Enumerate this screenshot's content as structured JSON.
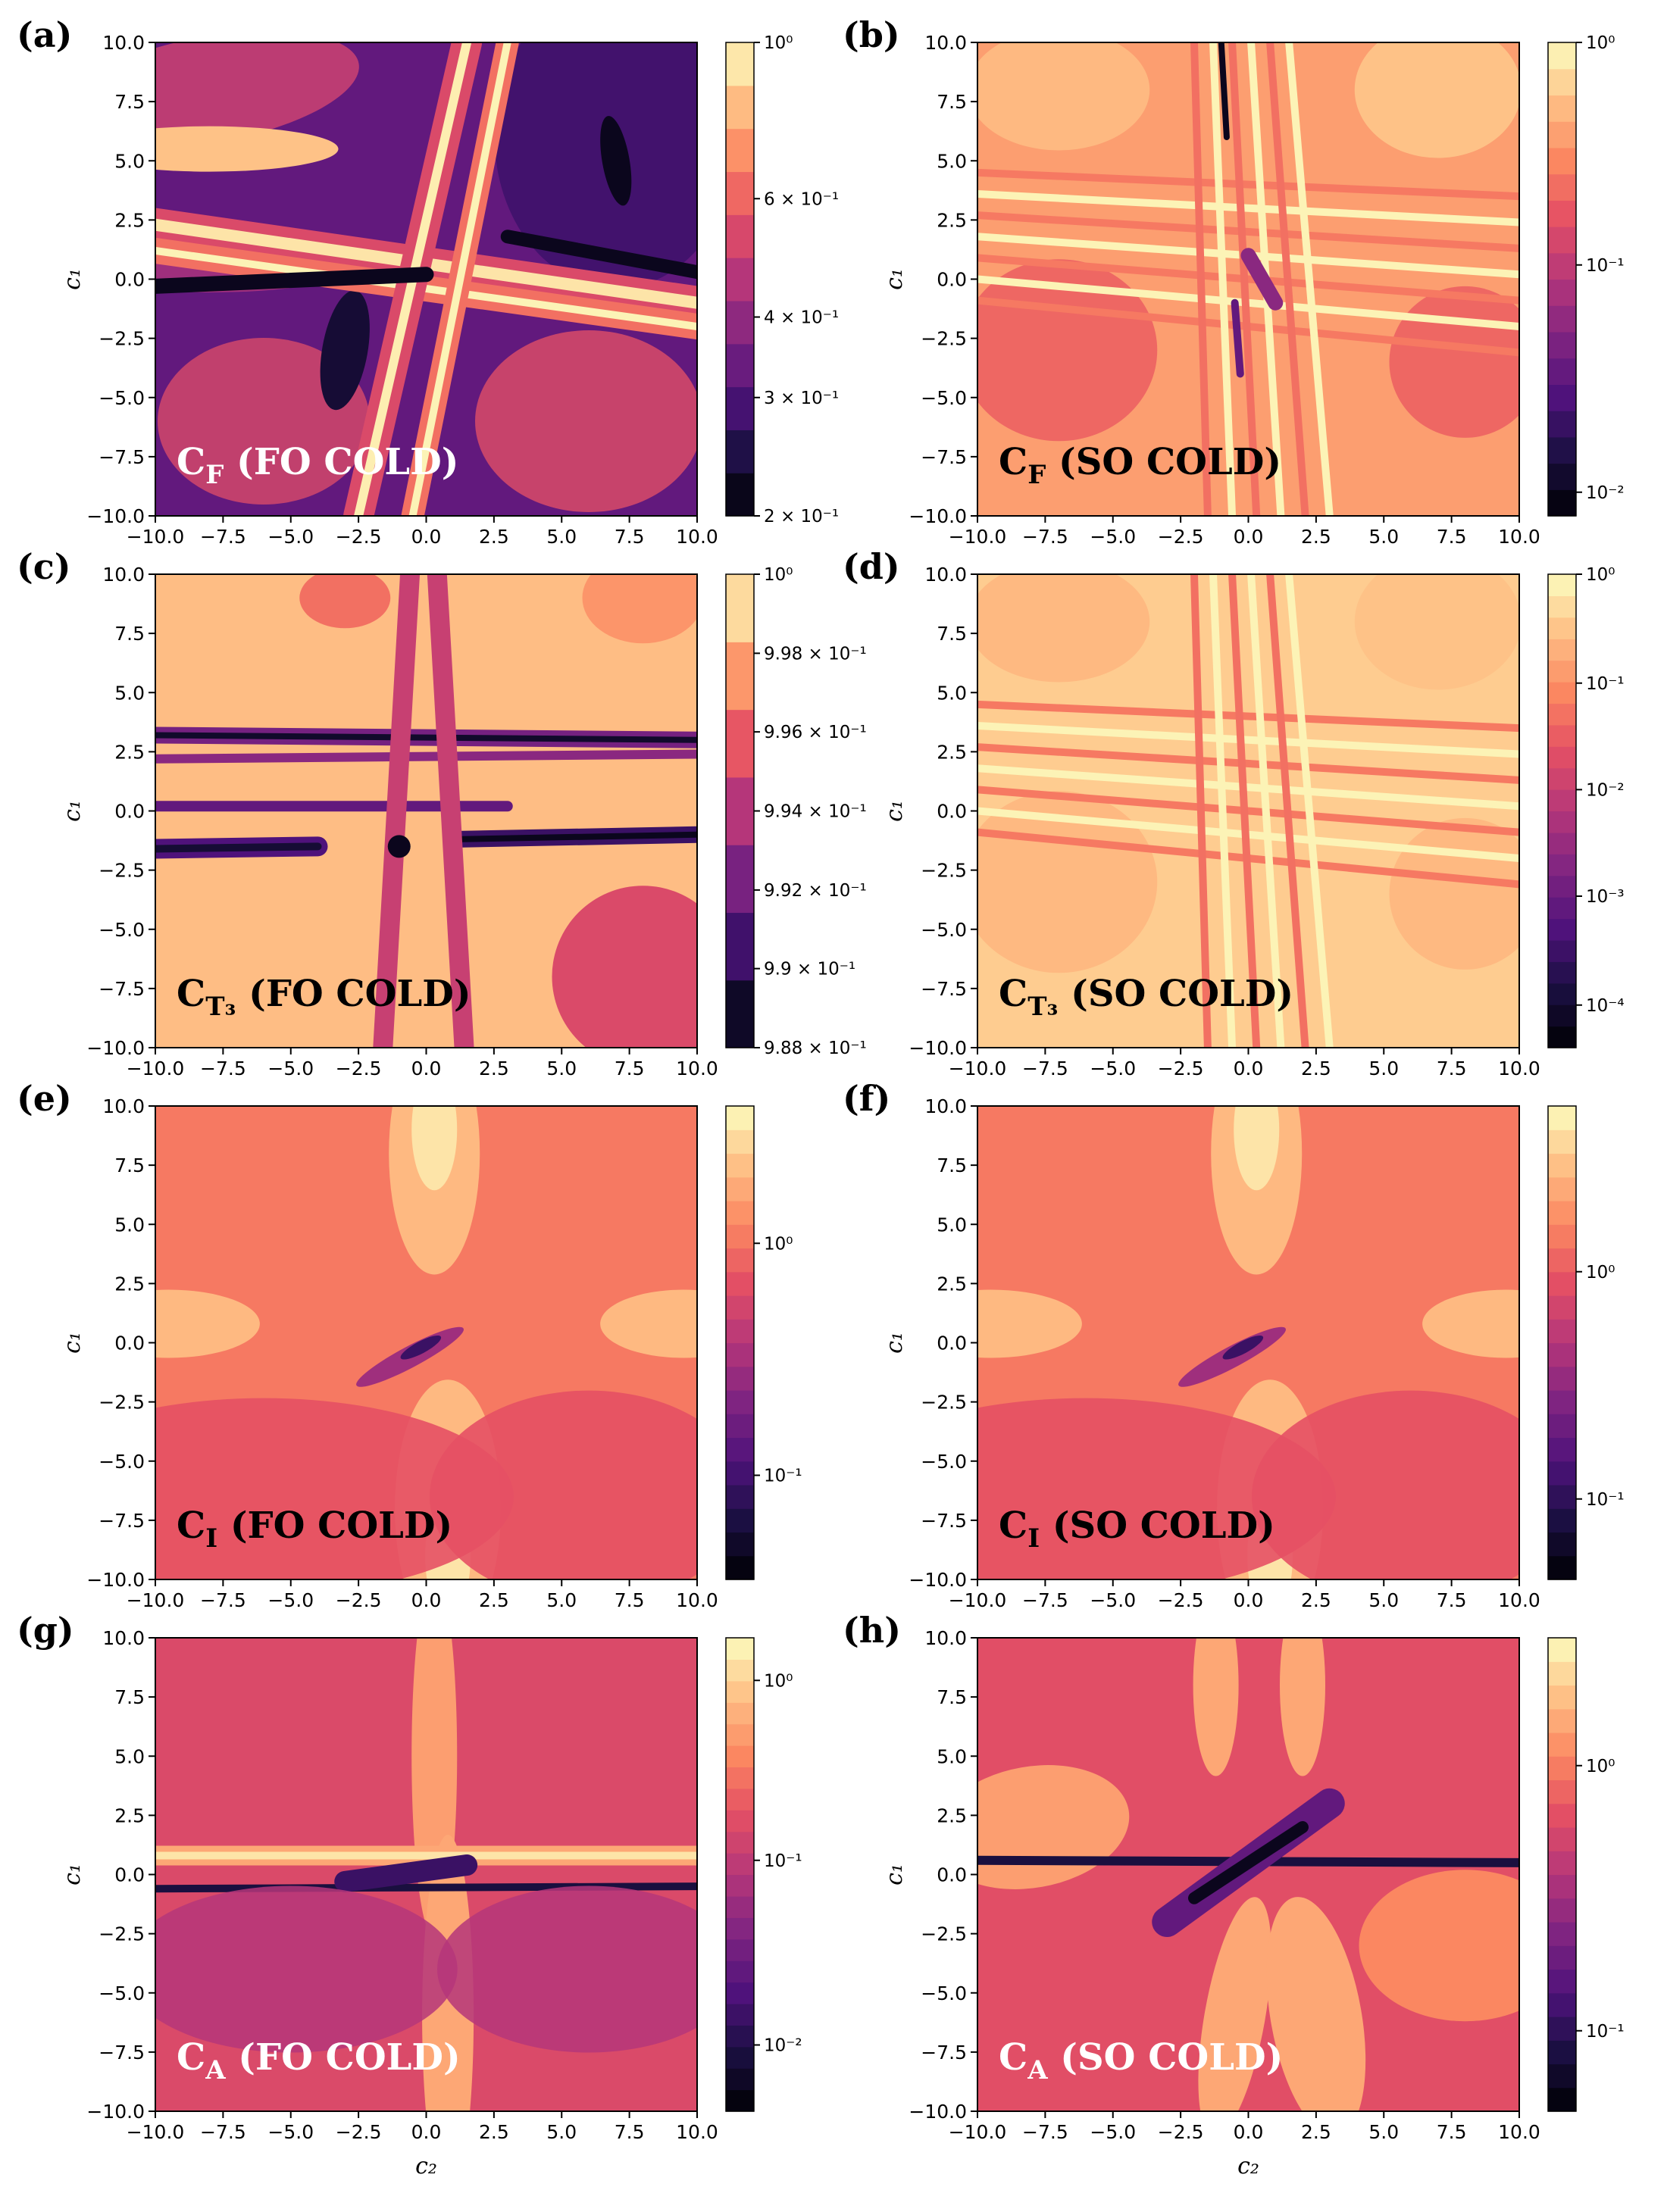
{
  "figure": {
    "x_axis_label": "c₂",
    "y_axis_label": "c₁",
    "colormap": "magma"
  },
  "chart_data": [
    {
      "panel": "(a)",
      "type": "heatmap",
      "overlay": {
        "main": "C",
        "sub": "F",
        "rest": " (FO COLD)",
        "color": "#ffffff"
      },
      "xlim": [
        -10,
        10
      ],
      "ylim": [
        -10,
        10
      ],
      "xticks": [
        "−10.0",
        "−7.5",
        "−5.0",
        "−2.5",
        "0.0",
        "2.5",
        "5.0",
        "7.5",
        "10.0"
      ],
      "yticks": [
        "−10.0",
        "−7.5",
        "−5.0",
        "−2.5",
        "0.0",
        "2.5",
        "5.0",
        "7.5",
        "10.0"
      ],
      "colorbar": {
        "scale": "log",
        "levels": 11,
        "ticks": [
          {
            "label": "2 × 10⁻¹",
            "pos": 0.0
          },
          {
            "label": "3 × 10⁻¹",
            "pos": 0.25
          },
          {
            "label": "4 × 10⁻¹",
            "pos": 0.42
          },
          {
            "label": "6 × 10⁻¹",
            "pos": 0.67
          },
          {
            "label": "10⁰",
            "pos": 1.0
          }
        ]
      },
      "pattern": {
        "kind": "lattice",
        "v": "bright"
      }
    },
    {
      "panel": "(b)",
      "type": "heatmap",
      "overlay": {
        "main": "C",
        "sub": "F",
        "rest": " (SO COLD)",
        "color": "#000000"
      },
      "xlim": [
        -10,
        10
      ],
      "ylim": [
        -10,
        10
      ],
      "xticks": [
        "−10.0",
        "−7.5",
        "−5.0",
        "−2.5",
        "0.0",
        "2.5",
        "5.0",
        "7.5",
        "10.0"
      ],
      "yticks": [
        "−10.0",
        "−7.5",
        "−5.0",
        "−2.5",
        "0.0",
        "2.5",
        "5.0",
        "7.5",
        "10.0"
      ],
      "colorbar": {
        "scale": "log",
        "levels": 18,
        "ticks": [
          {
            "label": "10⁻²",
            "pos": 0.05
          },
          {
            "label": "10⁻¹",
            "pos": 0.53
          },
          {
            "label": "10⁰",
            "pos": 1.0
          }
        ]
      },
      "pattern": {
        "kind": "light_cross",
        "v": "bright"
      }
    },
    {
      "panel": "(c)",
      "type": "heatmap",
      "overlay": {
        "main": "C",
        "sub": "T₃",
        "rest": " (FO COLD)",
        "color": "#000000"
      },
      "xlim": [
        -10,
        10
      ],
      "ylim": [
        -10,
        10
      ],
      "xticks": [
        "−10.0",
        "−7.5",
        "−5.0",
        "−2.5",
        "0.0",
        "2.5",
        "5.0",
        "7.5",
        "10.0"
      ],
      "yticks": [
        "−10.0",
        "−7.5",
        "−5.0",
        "−2.5",
        "0.0",
        "2.5",
        "5.0",
        "7.5",
        "10.0"
      ],
      "colorbar": {
        "scale": "log",
        "levels": 7,
        "ticks": [
          {
            "label": "9.88 × 10⁻¹",
            "pos": 0.0
          },
          {
            "label": "9.9 × 10⁻¹",
            "pos": 0.167
          },
          {
            "label": "9.92 × 10⁻¹",
            "pos": 0.333
          },
          {
            "label": "9.94 × 10⁻¹",
            "pos": 0.5
          },
          {
            "label": "9.96 × 10⁻¹",
            "pos": 0.667
          },
          {
            "label": "9.98 × 10⁻¹",
            "pos": 0.833
          },
          {
            "label": "10⁰",
            "pos": 1.0
          }
        ]
      },
      "pattern": {
        "kind": "lattice",
        "v": "dark"
      }
    },
    {
      "panel": "(d)",
      "type": "heatmap",
      "overlay": {
        "main": "C",
        "sub": "T₃",
        "rest": " (SO COLD)",
        "color": "#000000"
      },
      "xlim": [
        -10,
        10
      ],
      "ylim": [
        -10,
        10
      ],
      "xticks": [
        "−10.0",
        "−7.5",
        "−5.0",
        "−2.5",
        "0.0",
        "2.5",
        "5.0",
        "7.5",
        "10.0"
      ],
      "yticks": [
        "−10.0",
        "−7.5",
        "−5.0",
        "−2.5",
        "0.0",
        "2.5",
        "5.0",
        "7.5",
        "10.0"
      ],
      "colorbar": {
        "scale": "log",
        "levels": 22,
        "ticks": [
          {
            "label": "10⁻⁴",
            "pos": 0.09
          },
          {
            "label": "10⁻³",
            "pos": 0.32
          },
          {
            "label": "10⁻²",
            "pos": 0.545
          },
          {
            "label": "10⁻¹",
            "pos": 0.77
          },
          {
            "label": "10⁰",
            "pos": 1.0
          }
        ]
      },
      "pattern": {
        "kind": "light_cross",
        "v": "very_bright"
      }
    },
    {
      "panel": "(e)",
      "type": "heatmap",
      "overlay": {
        "main": "C",
        "sub": "I",
        "rest": " (FO COLD)",
        "color": "#000000"
      },
      "xlim": [
        -10,
        10
      ],
      "ylim": [
        -10,
        10
      ],
      "xticks": [
        "−10.0",
        "−7.5",
        "−5.0",
        "−2.5",
        "0.0",
        "2.5",
        "5.0",
        "7.5",
        "10.0"
      ],
      "yticks": [
        "−10.0",
        "−7.5",
        "−5.0",
        "−2.5",
        "0.0",
        "2.5",
        "5.0",
        "7.5",
        "10.0"
      ],
      "colorbar": {
        "scale": "log",
        "levels": 20,
        "ticks": [
          {
            "label": "10⁻¹",
            "pos": 0.22
          },
          {
            "label": "10⁰",
            "pos": 0.71
          }
        ]
      },
      "pattern": {
        "kind": "smooth",
        "v": "orange"
      }
    },
    {
      "panel": "(f)",
      "type": "heatmap",
      "overlay": {
        "main": "C",
        "sub": "I",
        "rest": " (SO COLD)",
        "color": "#000000"
      },
      "xlim": [
        -10,
        10
      ],
      "ylim": [
        -10,
        10
      ],
      "xticks": [
        "−10.0",
        "−7.5",
        "−5.0",
        "−2.5",
        "0.0",
        "2.5",
        "5.0",
        "7.5",
        "10.0"
      ],
      "yticks": [
        "−10.0",
        "−7.5",
        "−5.0",
        "−2.5",
        "0.0",
        "2.5",
        "5.0",
        "7.5",
        "10.0"
      ],
      "colorbar": {
        "scale": "log",
        "levels": 20,
        "ticks": [
          {
            "label": "10⁻¹",
            "pos": 0.17
          },
          {
            "label": "10⁰",
            "pos": 0.65
          }
        ]
      },
      "pattern": {
        "kind": "smooth",
        "v": "orange"
      }
    },
    {
      "panel": "(g)",
      "type": "heatmap",
      "overlay": {
        "main": "C",
        "sub": "A",
        "rest": " (FO COLD)",
        "color": "#ffffff"
      },
      "xlim": [
        -10,
        10
      ],
      "ylim": [
        -10,
        10
      ],
      "xticks": [
        "−10.0",
        "−7.5",
        "−5.0",
        "−2.5",
        "0.0",
        "2.5",
        "5.0",
        "7.5",
        "10.0"
      ],
      "yticks": [
        "−10.0",
        "−7.5",
        "−5.0",
        "−2.5",
        "0.0",
        "2.5",
        "5.0",
        "7.5",
        "10.0"
      ],
      "colorbar": {
        "scale": "log",
        "levels": 22,
        "ticks": [
          {
            "label": "10⁻²",
            "pos": 0.14
          },
          {
            "label": "10⁻¹",
            "pos": 0.53
          },
          {
            "label": "10⁰",
            "pos": 0.91
          }
        ]
      },
      "pattern": {
        "kind": "band",
        "v": "red"
      }
    },
    {
      "panel": "(h)",
      "type": "heatmap",
      "overlay": {
        "main": "C",
        "sub": "A",
        "rest": " (SO COLD)",
        "color": "#ffffff"
      },
      "xlim": [
        -10,
        10
      ],
      "ylim": [
        -10,
        10
      ],
      "xticks": [
        "−10.0",
        "−7.5",
        "−5.0",
        "−2.5",
        "0.0",
        "2.5",
        "5.0",
        "7.5",
        "10.0"
      ],
      "yticks": [
        "−10.0",
        "−7.5",
        "−5.0",
        "−2.5",
        "0.0",
        "2.5",
        "5.0",
        "7.5",
        "10.0"
      ],
      "colorbar": {
        "scale": "log",
        "levels": 20,
        "ticks": [
          {
            "label": "10⁻¹",
            "pos": 0.17
          },
          {
            "label": "10⁰",
            "pos": 0.73
          }
        ]
      },
      "pattern": {
        "kind": "cross_diag",
        "v": "red"
      }
    }
  ]
}
